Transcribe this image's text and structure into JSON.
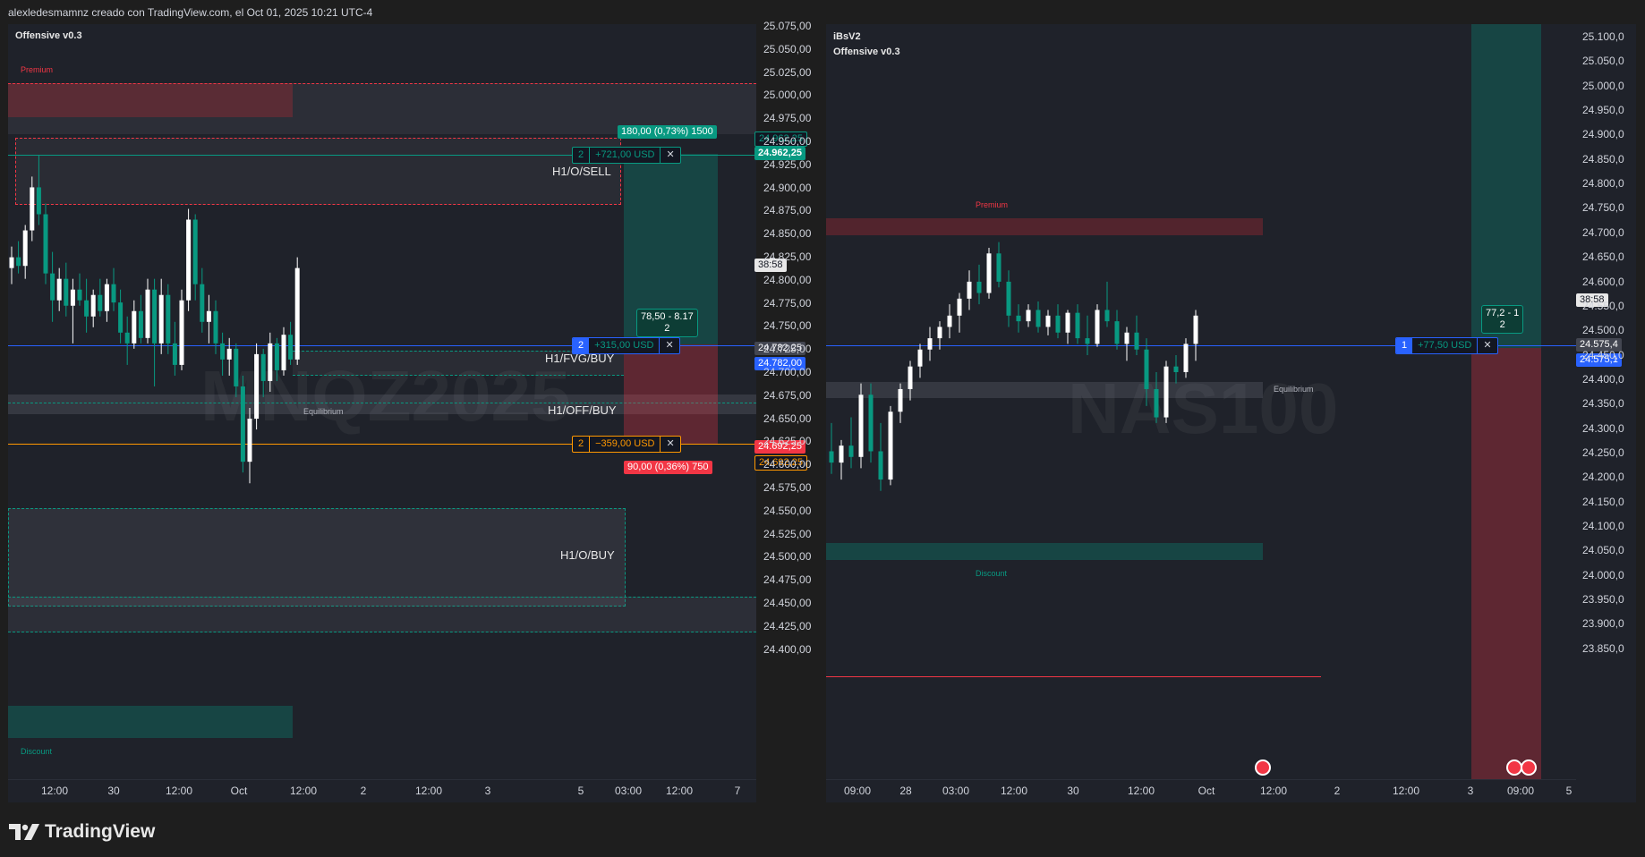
{
  "header": {
    "text": "alexledesmamnz creado con TradingView.com, el Oct 01, 2025 10:21 UTC-4"
  },
  "footer": {
    "brand": "TradingView",
    "icon": "tradingview-logo-icon"
  },
  "colors": {
    "up": "#089981",
    "down": "#f23645",
    "blue": "#2962ff",
    "orange": "#ff9800"
  },
  "left": {
    "indicator": "Offensive v0.3",
    "watermark": "MNQZ2025",
    "premium": "Premium",
    "discount": "Discount",
    "equilibrium": "Equilibrium",
    "labels": {
      "h1_o_sell": "H1/O/SELL",
      "h1_fvg_buy": "H1/FVG/BUY",
      "h1_off_buy": "H1/OFF/BUY",
      "h1_o_buy": "H1/O/BUY"
    },
    "y_ticks": [
      "25.075,00",
      "25.050,00",
      "25.025,00",
      "25.000,00",
      "24.975,00",
      "24.950,00",
      "24.925,00",
      "24.900,00",
      "24.875,00",
      "24.850,00",
      "24.825,00",
      "24.800,00",
      "24.775,00",
      "24.750,00",
      "24.725,00",
      "24.700,00",
      "24.675,00",
      "24.650,00",
      "24.625,00",
      "24.600,00",
      "24.575,00",
      "24.550,00",
      "24.525,00",
      "24.500,00",
      "24.475,00",
      "24.450,00",
      "24.425,00",
      "24.400,00"
    ],
    "x_ticks": [
      "12:00",
      "30",
      "12:00",
      "Oct",
      "12:00",
      "2",
      "12:00",
      "3",
      "5",
      "03:00",
      "12:00",
      "7"
    ],
    "target_tag": "180,00 (0,73%) 1500",
    "stop_tag": "90,00 (0,36%) 750",
    "rr_box": {
      "line1": "78,50 - 8.17",
      "line2": "2"
    },
    "positions": [
      {
        "qty": "2",
        "pnl": "+721,00 USD",
        "close": "✕"
      },
      {
        "qty": "2",
        "pnl": "+315,00 USD",
        "close": "✕"
      },
      {
        "qty": "2",
        "pnl": "−359,00 USD",
        "close": "✕"
      }
    ],
    "price_tags": {
      "tp1": "24.962,25",
      "tp2": "24.962,25",
      "countdown": "38:58",
      "last1": "24.782,25",
      "last2": "24.782,00",
      "sl1": "24.692,25",
      "sl2": "24.692,25"
    }
  },
  "right": {
    "indicator_1": "iBsV2",
    "indicator_2": "Offensive v0.3",
    "watermark": "NAS100",
    "premium": "Premium",
    "discount": "Discount",
    "equilibrium": "Equilibrium",
    "y_ticks": [
      "25.100,0",
      "25.050,0",
      "25.000,0",
      "24.950,0",
      "24.900,0",
      "24.850,0",
      "24.800,0",
      "24.750,0",
      "24.700,0",
      "24.650,0",
      "24.600,0",
      "24.550,0",
      "24.500,0",
      "24.450,0",
      "24.400,0",
      "24.350,0",
      "24.300,0",
      "24.250,0",
      "24.200,0",
      "24.150,0",
      "24.100,0",
      "24.050,0",
      "24.000,0",
      "23.950,0",
      "23.900,0",
      "23.850,0"
    ],
    "x_ticks": [
      "09:00",
      "28",
      "03:00",
      "12:00",
      "30",
      "12:00",
      "Oct",
      "12:00",
      "2",
      "12:00",
      "3",
      "09:00",
      "5"
    ],
    "rr_box": {
      "line1": "77,2 - 1",
      "line2": "2"
    },
    "position": {
      "qty": "1",
      "pnl": "+77,50 USD",
      "close": "✕"
    },
    "price_tags": {
      "countdown": "38:58",
      "last1": "24.575,4",
      "last2": "24.575,1"
    }
  },
  "chart_data": [
    {
      "type": "candlestick",
      "title": "Offensive v0.3",
      "symbol": "MNQZ2025",
      "ylim": [
        24385,
        25085
      ],
      "ohlc": [
        [
          24860,
          24880,
          24845,
          24870
        ],
        [
          24870,
          24885,
          24855,
          24862
        ],
        [
          24862,
          24900,
          24850,
          24895
        ],
        [
          24895,
          24945,
          24885,
          24935
        ],
        [
          24935,
          24965,
          24900,
          24910
        ],
        [
          24910,
          24920,
          24845,
          24855
        ],
        [
          24855,
          24875,
          24810,
          24830
        ],
        [
          24830,
          24860,
          24820,
          24850
        ],
        [
          24850,
          24865,
          24815,
          24825
        ],
        [
          24825,
          24850,
          24790,
          24840
        ],
        [
          24840,
          24855,
          24825,
          24830
        ],
        [
          24830,
          24850,
          24800,
          24815
        ],
        [
          24815,
          24840,
          24805,
          24835
        ],
        [
          24835,
          24850,
          24815,
          24820
        ],
        [
          24820,
          24850,
          24810,
          24845
        ],
        [
          24845,
          24860,
          24820,
          24828
        ],
        [
          24828,
          24840,
          24790,
          24800
        ],
        [
          24800,
          24815,
          24770,
          24790
        ],
        [
          24790,
          24830,
          24785,
          24820
        ],
        [
          24820,
          24835,
          24790,
          24795
        ],
        [
          24795,
          24850,
          24790,
          24840
        ],
        [
          24840,
          24850,
          24750,
          24790
        ],
        [
          24790,
          24850,
          24780,
          24835
        ],
        [
          24835,
          24845,
          24780,
          24790
        ],
        [
          24790,
          24810,
          24760,
          24770
        ],
        [
          24770,
          24840,
          24765,
          24830
        ],
        [
          24830,
          24915,
          24820,
          24905
        ],
        [
          24905,
          24910,
          24830,
          24845
        ],
        [
          24845,
          24860,
          24800,
          24810
        ],
        [
          24810,
          24835,
          24790,
          24820
        ],
        [
          24820,
          24830,
          24780,
          24790
        ],
        [
          24790,
          24800,
          24760,
          24775
        ],
        [
          24775,
          24795,
          24760,
          24785
        ],
        [
          24785,
          24790,
          24740,
          24750
        ],
        [
          24750,
          24760,
          24670,
          24680
        ],
        [
          24680,
          24730,
          24660,
          24720
        ],
        [
          24720,
          24790,
          24710,
          24780
        ],
        [
          24780,
          24785,
          24740,
          24755
        ],
        [
          24755,
          24800,
          24745,
          24790
        ],
        [
          24790,
          24795,
          24755,
          24765
        ],
        [
          24765,
          24805,
          24760,
          24798
        ],
        [
          24798,
          24810,
          24770,
          24775
        ],
        [
          24775,
          24870,
          24770,
          24860
        ]
      ]
    },
    {
      "type": "candlestick",
      "title": "Offensive v0.3",
      "symbol": "NAS100",
      "ylim": [
        23820,
        25135
      ],
      "ohlc": [
        [
          24400,
          24450,
          24360,
          24380
        ],
        [
          24380,
          24420,
          24350,
          24410
        ],
        [
          24410,
          24460,
          24370,
          24390
        ],
        [
          24390,
          24520,
          24370,
          24500
        ],
        [
          24500,
          24520,
          24380,
          24400
        ],
        [
          24400,
          24450,
          24330,
          24350
        ],
        [
          24350,
          24480,
          24340,
          24470
        ],
        [
          24470,
          24520,
          24450,
          24510
        ],
        [
          24510,
          24560,
          24490,
          24550
        ],
        [
          24550,
          24590,
          24530,
          24580
        ],
        [
          24580,
          24620,
          24560,
          24600
        ],
        [
          24600,
          24630,
          24580,
          24620
        ],
        [
          24620,
          24660,
          24600,
          24640
        ],
        [
          24640,
          24680,
          24610,
          24670
        ],
        [
          24670,
          24720,
          24650,
          24700
        ],
        [
          24700,
          24730,
          24660,
          24680
        ],
        [
          24680,
          24760,
          24670,
          24750
        ],
        [
          24750,
          24770,
          24690,
          24700
        ],
        [
          24700,
          24720,
          24620,
          24640
        ],
        [
          24640,
          24660,
          24610,
          24630
        ],
        [
          24630,
          24660,
          24620,
          24650
        ],
        [
          24650,
          24665,
          24610,
          24620
        ],
        [
          24620,
          24650,
          24605,
          24640
        ],
        [
          24640,
          24660,
          24600,
          24610
        ],
        [
          24610,
          24650,
          24590,
          24645
        ],
        [
          24645,
          24660,
          24590,
          24600
        ],
        [
          24600,
          24640,
          24570,
          24590
        ],
        [
          24590,
          24660,
          24585,
          24650
        ],
        [
          24650,
          24700,
          24620,
          24630
        ],
        [
          24630,
          24650,
          24580,
          24590
        ],
        [
          24590,
          24620,
          24560,
          24610
        ],
        [
          24610,
          24640,
          24570,
          24580
        ],
        [
          24580,
          24600,
          24480,
          24510
        ],
        [
          24510,
          24540,
          24450,
          24460
        ],
        [
          24460,
          24560,
          24450,
          24550
        ],
        [
          24550,
          24570,
          24520,
          24540
        ],
        [
          24540,
          24600,
          24530,
          24590
        ],
        [
          24590,
          24650,
          24560,
          24640
        ]
      ]
    }
  ]
}
